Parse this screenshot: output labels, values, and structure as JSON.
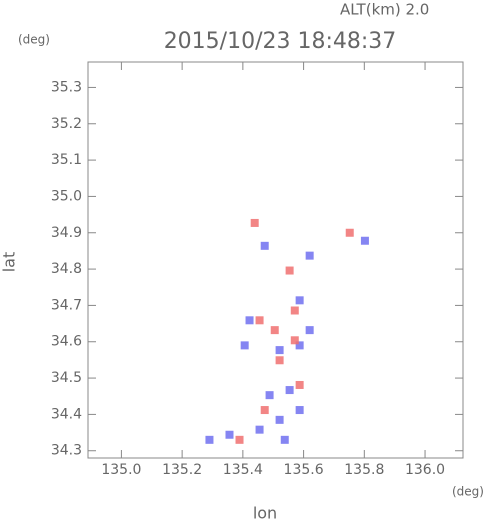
{
  "chart_data": {
    "type": "scatter",
    "title": "2015/10/23 18:48:37",
    "annotation": "ALT(km)  2.0",
    "y_unit": "(deg)",
    "x_unit": "(deg)",
    "xlabel": "lon",
    "ylabel": "lat",
    "xlim": [
      134.89,
      136.125
    ],
    "ylim": [
      34.28,
      35.37
    ],
    "xticks": [
      {
        "value": 135.0,
        "label": "135.0"
      },
      135.2,
      135.4,
      135.6,
      135.8,
      {
        "value": 136.0,
        "label": "136.0"
      }
    ],
    "yticks": [
      34.3,
      34.4,
      34.5,
      34.6,
      34.7,
      34.8,
      34.9,
      {
        "value": 35.0,
        "label": "35.0"
      },
      35.1,
      35.2,
      35.3
    ],
    "series": [
      {
        "color": "#7070f0",
        "x": [
          135.587,
          135.521,
          135.587,
          135.422,
          135.406,
          135.554,
          135.587,
          135.521,
          135.455,
          135.356,
          135.62,
          135.472,
          135.62,
          135.802,
          135.488,
          135.538,
          135.29
        ],
        "values": [
          34.59,
          34.577,
          34.714,
          34.659,
          34.59,
          34.467,
          34.412,
          34.385,
          34.358,
          34.344,
          34.632,
          34.864,
          34.837,
          34.878,
          34.453,
          34.33,
          34.33
        ]
      },
      {
        "color": "#f07070",
        "x": [
          135.554,
          135.455,
          135.505,
          135.571,
          135.472,
          135.587,
          135.521,
          135.752,
          135.439,
          135.389,
          135.571
        ],
        "values": [
          34.796,
          34.659,
          34.632,
          34.686,
          34.412,
          34.481,
          34.549,
          34.9,
          34.927,
          34.33,
          34.604
        ]
      }
    ]
  }
}
